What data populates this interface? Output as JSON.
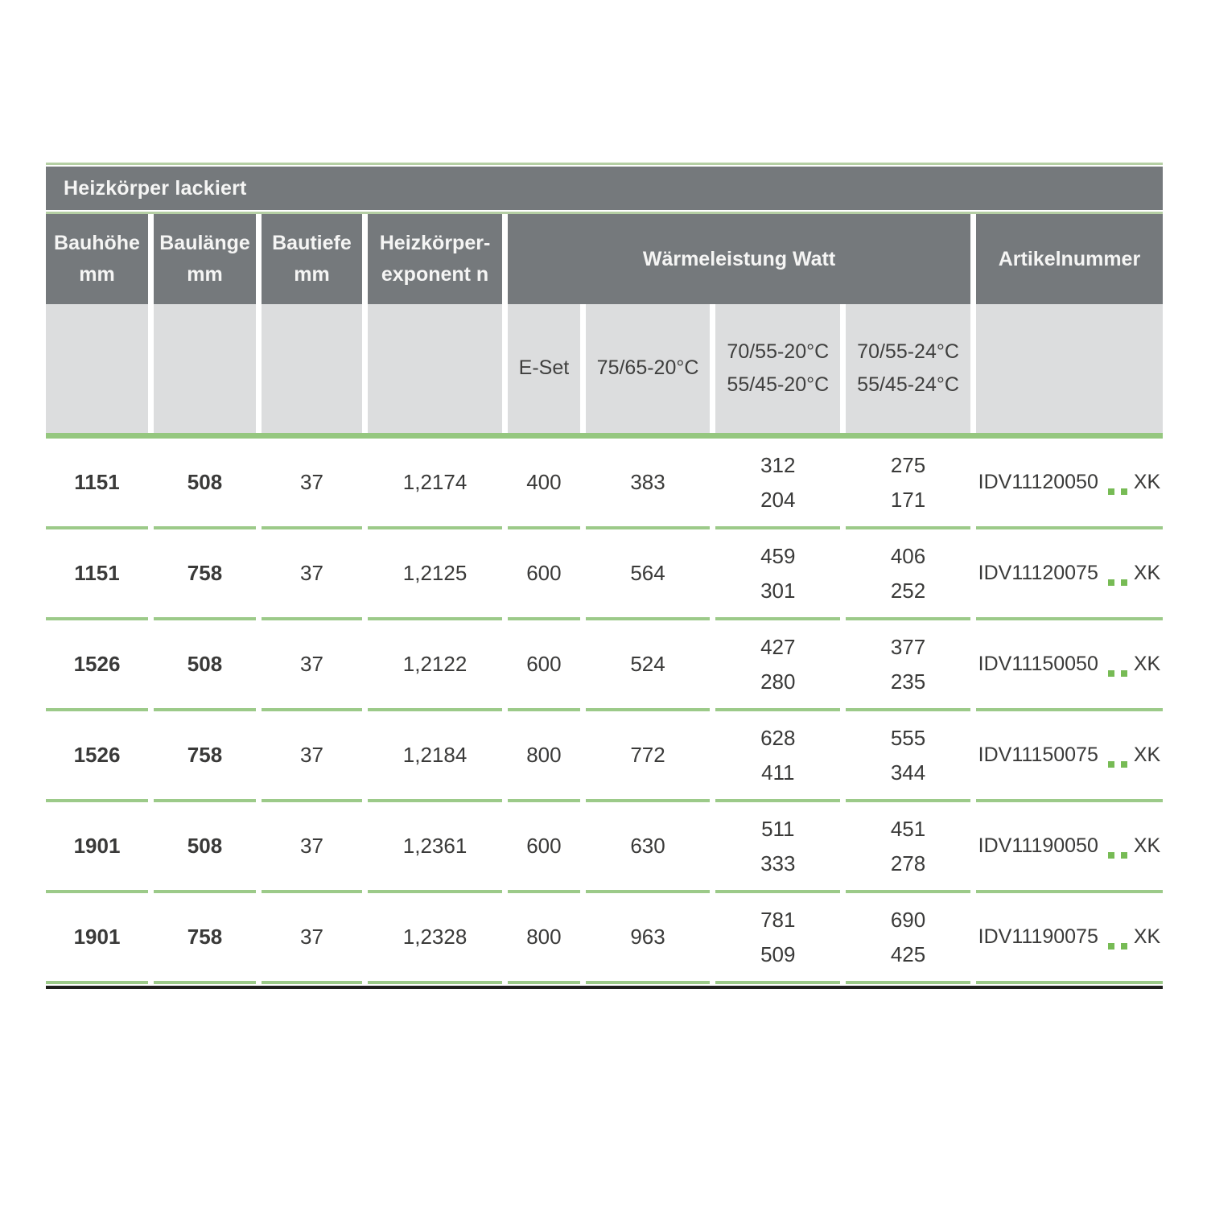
{
  "table": {
    "title": "Heizkörper lackiert",
    "columns": {
      "bauhoehe": [
        "Bauhöhe",
        "mm"
      ],
      "baulaenge": [
        "Baulänge",
        "mm"
      ],
      "bautiefe": [
        "Bautiefe",
        "mm"
      ],
      "exponent": [
        "Heizkörper-",
        "exponent n"
      ],
      "waermeleistung_group": "Wärmeleistung Watt",
      "artikelnummer": "Artikelnummer"
    },
    "subheader": {
      "eset": "E-Set",
      "t7565": "75/65-20°C",
      "t20": [
        "70/55-20°C",
        "55/45-20°C"
      ],
      "t24": [
        "70/55-24°C",
        "55/45-24°C"
      ]
    },
    "artikel_placeholder_dots": ". .",
    "colors": {
      "header_gray": "#75797c",
      "subheader_gray": "#dcddde",
      "row_green": "#e4efde",
      "accent_green": "#95c77f",
      "border_green": "#9cca89",
      "dot_green": "#77bb55"
    },
    "rows": [
      {
        "h": "1151",
        "l": "508",
        "d": "37",
        "n": "1,2174",
        "eset": "400",
        "w7565": "383",
        "w20": [
          "312",
          "204"
        ],
        "w24": [
          "275",
          "171"
        ],
        "art": {
          "code": "IDV11120050",
          "suffix": "XK"
        }
      },
      {
        "h": "1151",
        "l": "758",
        "d": "37",
        "n": "1,2125",
        "eset": "600",
        "w7565": "564",
        "w20": [
          "459",
          "301"
        ],
        "w24": [
          "406",
          "252"
        ],
        "art": {
          "code": "IDV11120075",
          "suffix": "XK"
        }
      },
      {
        "h": "1526",
        "l": "508",
        "d": "37",
        "n": "1,2122",
        "eset": "600",
        "w7565": "524",
        "w20": [
          "427",
          "280"
        ],
        "w24": [
          "377",
          "235"
        ],
        "art": {
          "code": "IDV11150050",
          "suffix": "XK"
        }
      },
      {
        "h": "1526",
        "l": "758",
        "d": "37",
        "n": "1,2184",
        "eset": "800",
        "w7565": "772",
        "w20": [
          "628",
          "411"
        ],
        "w24": [
          "555",
          "344"
        ],
        "art": {
          "code": "IDV11150075",
          "suffix": "XK"
        }
      },
      {
        "h": "1901",
        "l": "508",
        "d": "37",
        "n": "1,2361",
        "eset": "600",
        "w7565": "630",
        "w20": [
          "511",
          "333"
        ],
        "w24": [
          "451",
          "278"
        ],
        "art": {
          "code": "IDV11190050",
          "suffix": "XK"
        }
      },
      {
        "h": "1901",
        "l": "758",
        "d": "37",
        "n": "1,2328",
        "eset": "800",
        "w7565": "963",
        "w20": [
          "781",
          "509"
        ],
        "w24": [
          "690",
          "425"
        ],
        "art": {
          "code": "IDV11190075",
          "suffix": "XK"
        }
      }
    ]
  }
}
